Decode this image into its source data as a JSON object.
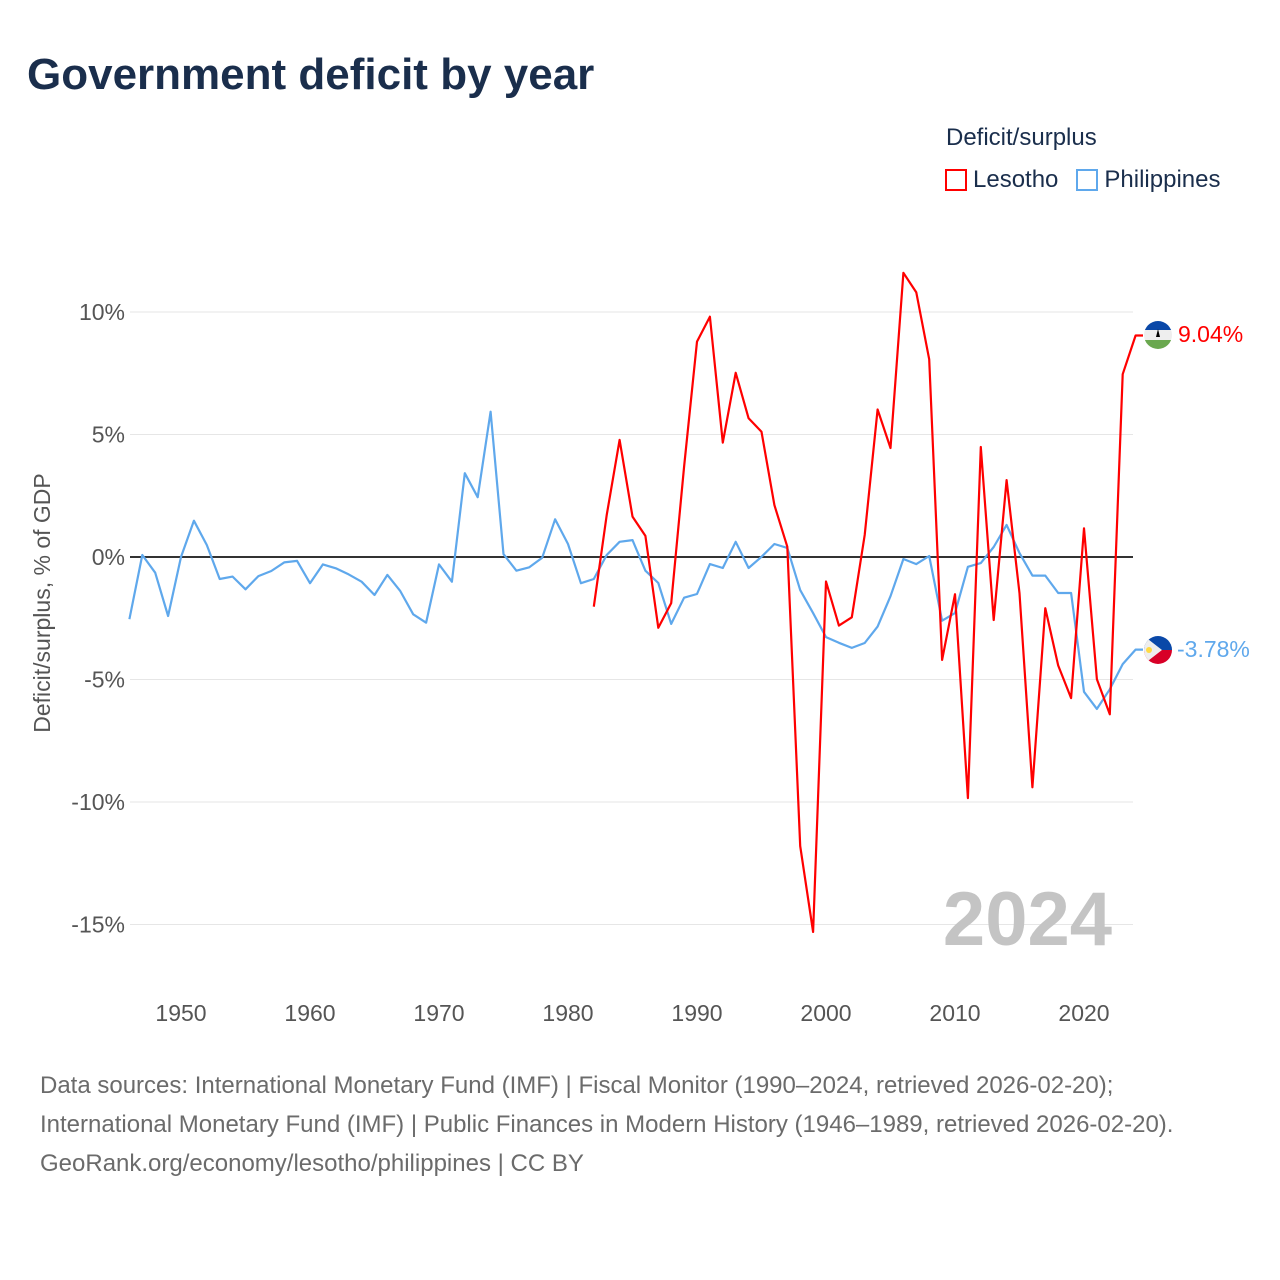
{
  "title": "Government deficit by year",
  "legend": {
    "title": "Deficit/surplus",
    "items": [
      {
        "label": "Lesotho",
        "color": "#ff0000"
      },
      {
        "label": "Philippines",
        "color": "#5fa8ec"
      }
    ]
  },
  "watermark_year": "2024",
  "end_labels": {
    "lesotho": "9.04%",
    "philippines": "-3.78%"
  },
  "footer": {
    "sources": "Data sources: International Monetary Fund (IMF) | Fiscal Monitor (1990–2024, retrieved 2026-02-20); International Monetary Fund (IMF) | Public Finances in Modern History (1946–1989, retrieved 2026-02-20).",
    "credit": "GeoRank.org/economy/lesotho/philippines | CC BY"
  },
  "chart_data": {
    "type": "line",
    "title": "Government deficit by year",
    "xlabel": "",
    "ylabel": "Deficit/surplus, % of GDP",
    "xlim": [
      1946,
      2024
    ],
    "ylim": [
      -17,
      12
    ],
    "x_ticks": [
      1950,
      1960,
      1970,
      1980,
      1990,
      2000,
      2010,
      2020
    ],
    "y_ticks": [
      10,
      5,
      0,
      -5,
      -10,
      -15
    ],
    "y_tick_labels": [
      "10%",
      "5%",
      "0%",
      "-5%",
      "-10%",
      "-15%"
    ],
    "grid": true,
    "legend_position": "top-right",
    "series": [
      {
        "name": "Lesotho",
        "color": "#ff0000",
        "start_year": 1982,
        "values": [
          -2.03,
          1.71,
          4.78,
          1.65,
          0.86,
          -2.89,
          -1.88,
          3.69,
          8.79,
          9.81,
          4.67,
          7.52,
          5.66,
          5.11,
          2.12,
          0.42,
          -11.8,
          -15.3,
          -1.0,
          -2.8,
          -2.46,
          0.9,
          6.02,
          4.45,
          11.6,
          10.8,
          8.07,
          -4.2,
          -1.52,
          -9.84,
          4.49,
          -2.57,
          3.14,
          -1.48,
          -9.4,
          -2.09,
          -4.43,
          -5.76,
          1.17,
          -4.99,
          -6.42,
          7.46,
          9.04
        ]
      },
      {
        "name": "Philippines",
        "color": "#5fa8ec",
        "start_year": 1946,
        "values": [
          -2.54,
          0.08,
          -0.64,
          -2.41,
          0.0,
          1.48,
          0.49,
          -0.9,
          -0.8,
          -1.32,
          -0.78,
          -0.57,
          -0.22,
          -0.16,
          -1.07,
          -0.3,
          -0.46,
          -0.71,
          -1.01,
          -1.55,
          -0.73,
          -1.39,
          -2.34,
          -2.68,
          -0.3,
          -1.01,
          3.42,
          2.44,
          5.93,
          0.12,
          -0.56,
          -0.42,
          -0.03,
          1.54,
          0.53,
          -1.07,
          -0.9,
          0.08,
          0.62,
          0.69,
          -0.56,
          -1.06,
          -2.73,
          -1.66,
          -1.51,
          -0.29,
          -0.45,
          0.62,
          -0.45,
          0.01,
          0.53,
          0.37,
          -1.35,
          -2.29,
          -3.27,
          -3.5,
          -3.71,
          -3.51,
          -2.84,
          -1.6,
          -0.08,
          -0.29,
          0.04,
          -2.6,
          -2.29,
          -0.4,
          -0.25,
          0.41,
          1.31,
          0.16,
          -0.76,
          -0.76,
          -1.47,
          -1.47,
          -5.5,
          -6.2,
          -5.4,
          -4.37,
          -3.78
        ]
      }
    ]
  }
}
